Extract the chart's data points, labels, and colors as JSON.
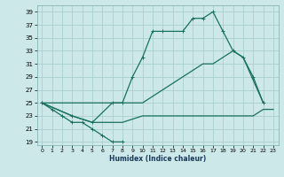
{
  "xlabel": "Humidex (Indice chaleur)",
  "xlim": [
    -0.5,
    23.5
  ],
  "ylim": [
    18.5,
    40
  ],
  "xticks": [
    0,
    1,
    2,
    3,
    4,
    5,
    6,
    7,
    8,
    9,
    10,
    11,
    12,
    13,
    14,
    15,
    16,
    17,
    18,
    19,
    20,
    21,
    22,
    23
  ],
  "yticks": [
    19,
    21,
    23,
    25,
    27,
    29,
    31,
    33,
    35,
    37,
    39
  ],
  "bg_color": "#cce8e8",
  "grid_color": "#aacfcf",
  "line_color": "#1a7060",
  "series1_x": [
    0,
    1,
    2,
    3,
    4,
    5,
    6,
    7,
    8
  ],
  "series1_y": [
    25,
    24,
    23,
    22,
    22,
    21,
    20,
    19,
    19
  ],
  "series2_x": [
    0,
    3,
    5,
    7,
    8,
    9,
    10,
    11,
    12,
    14,
    15,
    16,
    17,
    18,
    19,
    20,
    21,
    22
  ],
  "series2_y": [
    25,
    23,
    22,
    25,
    25,
    29,
    32,
    36,
    36,
    36,
    38,
    38,
    39,
    36,
    33,
    32,
    29,
    25
  ],
  "series3_x": [
    0,
    10,
    11,
    12,
    13,
    14,
    15,
    16,
    17,
    18,
    19,
    20,
    22
  ],
  "series3_y": [
    25,
    25,
    26,
    27,
    28,
    29,
    30,
    31,
    31,
    32,
    33,
    32,
    25
  ],
  "series4_x": [
    0,
    3,
    5,
    6,
    7,
    8,
    10,
    11,
    12,
    13,
    14,
    15,
    16,
    17,
    18,
    19,
    20,
    21,
    22,
    23
  ],
  "series4_y": [
    25,
    23,
    22,
    22,
    22,
    22,
    23,
    23,
    23,
    23,
    23,
    23,
    23,
    23,
    23,
    23,
    23,
    23,
    24,
    24
  ]
}
